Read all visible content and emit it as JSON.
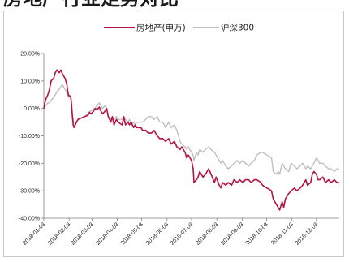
{
  "header": {
    "title": "房地产行业走势对比"
  },
  "chart_data": {
    "type": "line",
    "title": "",
    "xlabel": "",
    "ylabel": "",
    "ylim": [
      -40,
      20
    ],
    "yticks": [
      -40,
      -30,
      -20,
      -10,
      0,
      10,
      20
    ],
    "ytick_labels": [
      "-40.00%",
      "-30.00%",
      "-20.00%",
      "-10.00%",
      "0.00%",
      "10.00%",
      "20.00%"
    ],
    "xlim": [
      "2018-01-03",
      "2018-12-31"
    ],
    "xtick_labels": [
      "2018-01-03",
      "2018-02-03",
      "2018-03-03",
      "2018-04-03",
      "2018-05-03",
      "2018-06-03",
      "2018-07-03",
      "2018-08-03",
      "2018-09-03",
      "2018-10-03",
      "2018-11-03",
      "2018-12-03"
    ],
    "grid": false,
    "legend_position": "top",
    "series": [
      {
        "name": "房地产(申万)",
        "color": "#b5123f",
        "points": [
          [
            "2018-01-03",
            0
          ],
          [
            "2018-01-05",
            3
          ],
          [
            "2018-01-08",
            5
          ],
          [
            "2018-01-10",
            7
          ],
          [
            "2018-01-12",
            10
          ],
          [
            "2018-01-15",
            11
          ],
          [
            "2018-01-17",
            13
          ],
          [
            "2018-01-19",
            14
          ],
          [
            "2018-01-22",
            13
          ],
          [
            "2018-01-24",
            14
          ],
          [
            "2018-01-26",
            12.5
          ],
          [
            "2018-01-29",
            11
          ],
          [
            "2018-01-31",
            9
          ],
          [
            "2018-02-02",
            5
          ],
          [
            "2018-02-05",
            4
          ],
          [
            "2018-02-06",
            1
          ],
          [
            "2018-02-07",
            -3
          ],
          [
            "2018-02-08",
            -6
          ],
          [
            "2018-02-09",
            -7
          ],
          [
            "2018-02-12",
            -5
          ],
          [
            "2018-02-14",
            -4
          ],
          [
            "2018-02-22",
            -3
          ],
          [
            "2018-02-26",
            -2.5
          ],
          [
            "2018-02-28",
            -1.5
          ],
          [
            "2018-03-02",
            -2
          ],
          [
            "2018-03-05",
            -1
          ],
          [
            "2018-03-07",
            0
          ],
          [
            "2018-03-09",
            -0.5
          ],
          [
            "2018-03-12",
            0.5
          ],
          [
            "2018-03-14",
            -1
          ],
          [
            "2018-03-16",
            -2
          ],
          [
            "2018-03-19",
            -1
          ],
          [
            "2018-03-21",
            0
          ],
          [
            "2018-03-23",
            -3
          ],
          [
            "2018-03-26",
            -5
          ],
          [
            "2018-03-28",
            -3
          ],
          [
            "2018-03-30",
            -6
          ],
          [
            "2018-04-02",
            -4
          ],
          [
            "2018-04-04",
            -5
          ],
          [
            "2018-04-09",
            -6
          ],
          [
            "2018-04-11",
            -3
          ],
          [
            "2018-04-13",
            -6
          ],
          [
            "2018-04-16",
            -5
          ],
          [
            "2018-04-18",
            -6
          ],
          [
            "2018-04-20",
            -5
          ],
          [
            "2018-04-23",
            -7
          ],
          [
            "2018-04-25",
            -6
          ],
          [
            "2018-04-27",
            -7
          ],
          [
            "2018-05-02",
            -7
          ],
          [
            "2018-05-04",
            -8
          ],
          [
            "2018-05-08",
            -8
          ],
          [
            "2018-05-11",
            -9
          ],
          [
            "2018-05-15",
            -9
          ],
          [
            "2018-05-18",
            -8
          ],
          [
            "2018-05-22",
            -10
          ],
          [
            "2018-05-25",
            -11
          ],
          [
            "2018-05-29",
            -11
          ],
          [
            "2018-06-01",
            -12
          ],
          [
            "2018-06-05",
            -11
          ],
          [
            "2018-06-08",
            -13
          ],
          [
            "2018-06-12",
            -12
          ],
          [
            "2018-06-15",
            -14
          ],
          [
            "2018-06-19",
            -15
          ],
          [
            "2018-06-21",
            -14
          ],
          [
            "2018-06-25",
            -16
          ],
          [
            "2018-06-27",
            -18
          ],
          [
            "2018-06-29",
            -17
          ],
          [
            "2018-07-03",
            -19
          ],
          [
            "2018-07-05",
            -22
          ],
          [
            "2018-07-06",
            -27
          ],
          [
            "2018-07-09",
            -26
          ],
          [
            "2018-07-11",
            -25
          ],
          [
            "2018-07-13",
            -23
          ],
          [
            "2018-07-17",
            -25
          ],
          [
            "2018-07-20",
            -24
          ],
          [
            "2018-07-24",
            -22
          ],
          [
            "2018-07-27",
            -24
          ],
          [
            "2018-07-31",
            -27
          ],
          [
            "2018-08-02",
            -25
          ],
          [
            "2018-08-06",
            -28
          ],
          [
            "2018-08-08",
            -29
          ],
          [
            "2018-08-10",
            -27
          ],
          [
            "2018-08-14",
            -28
          ],
          [
            "2018-08-17",
            -27
          ],
          [
            "2018-08-21",
            -28
          ],
          [
            "2018-08-24",
            -26
          ],
          [
            "2018-08-28",
            -27
          ],
          [
            "2018-08-31",
            -26
          ],
          [
            "2018-09-04",
            -27
          ],
          [
            "2018-09-07",
            -26
          ],
          [
            "2018-09-11",
            -26
          ],
          [
            "2018-09-14",
            -27
          ],
          [
            "2018-09-18",
            -26
          ],
          [
            "2018-09-21",
            -26
          ],
          [
            "2018-09-26",
            -27
          ],
          [
            "2018-09-28",
            -28
          ],
          [
            "2018-10-09",
            -30
          ],
          [
            "2018-10-11",
            -33
          ],
          [
            "2018-10-15",
            -35
          ],
          [
            "2018-10-17",
            -36
          ],
          [
            "2018-10-19",
            -37
          ],
          [
            "2018-10-22",
            -34
          ],
          [
            "2018-10-24",
            -36
          ],
          [
            "2018-10-26",
            -33
          ],
          [
            "2018-10-30",
            -31
          ],
          [
            "2018-11-02",
            -30
          ],
          [
            "2018-11-06",
            -29
          ],
          [
            "2018-11-09",
            -30
          ],
          [
            "2018-11-13",
            -29
          ],
          [
            "2018-11-16",
            -28
          ],
          [
            "2018-11-20",
            -26
          ],
          [
            "2018-11-22",
            -28
          ],
          [
            "2018-11-26",
            -27
          ],
          [
            "2018-11-28",
            -24
          ],
          [
            "2018-11-30",
            -23
          ],
          [
            "2018-12-03",
            -24
          ],
          [
            "2018-12-05",
            -26
          ],
          [
            "2018-12-07",
            -26
          ],
          [
            "2018-12-11",
            -25
          ],
          [
            "2018-12-14",
            -27
          ],
          [
            "2018-12-18",
            -26
          ],
          [
            "2018-12-21",
            -27
          ],
          [
            "2018-12-25",
            -26
          ],
          [
            "2018-12-28",
            -27
          ],
          [
            "2018-12-31",
            -27
          ]
        ]
      },
      {
        "name": "沪深300",
        "color": "#bfbfbf",
        "points": [
          [
            "2018-01-03",
            0
          ],
          [
            "2018-01-05",
            1
          ],
          [
            "2018-01-08",
            2
          ],
          [
            "2018-01-10",
            2
          ],
          [
            "2018-01-12",
            3
          ],
          [
            "2018-01-15",
            4
          ],
          [
            "2018-01-17",
            5
          ],
          [
            "2018-01-19",
            6
          ],
          [
            "2018-01-22",
            7
          ],
          [
            "2018-01-24",
            8
          ],
          [
            "2018-01-26",
            8.5
          ],
          [
            "2018-01-29",
            7
          ],
          [
            "2018-01-31",
            6
          ],
          [
            "2018-02-02",
            4
          ],
          [
            "2018-02-05",
            5
          ],
          [
            "2018-02-06",
            2
          ],
          [
            "2018-02-07",
            -2
          ],
          [
            "2018-02-08",
            -4
          ],
          [
            "2018-02-09",
            -7
          ],
          [
            "2018-02-12",
            -5
          ],
          [
            "2018-02-14",
            -4
          ],
          [
            "2018-02-22",
            -3
          ],
          [
            "2018-02-26",
            -2
          ],
          [
            "2018-02-28",
            -1
          ],
          [
            "2018-03-02",
            -1
          ],
          [
            "2018-03-05",
            0
          ],
          [
            "2018-03-07",
            0
          ],
          [
            "2018-03-09",
            1
          ],
          [
            "2018-03-12",
            2
          ],
          [
            "2018-03-14",
            1
          ],
          [
            "2018-03-16",
            0
          ],
          [
            "2018-03-19",
            1
          ],
          [
            "2018-03-21",
            0
          ],
          [
            "2018-03-23",
            -3
          ],
          [
            "2018-03-26",
            -4
          ],
          [
            "2018-03-28",
            -3
          ],
          [
            "2018-03-30",
            -4
          ],
          [
            "2018-04-02",
            -3
          ],
          [
            "2018-04-04",
            -4
          ],
          [
            "2018-04-09",
            -4
          ],
          [
            "2018-04-11",
            -3
          ],
          [
            "2018-04-13",
            -4
          ],
          [
            "2018-04-16",
            -5
          ],
          [
            "2018-04-18",
            -4
          ],
          [
            "2018-04-20",
            -6
          ],
          [
            "2018-04-23",
            -5
          ],
          [
            "2018-04-25",
            -6
          ],
          [
            "2018-04-27",
            -5
          ],
          [
            "2018-05-02",
            -5
          ],
          [
            "2018-05-04",
            -5
          ],
          [
            "2018-05-08",
            -4
          ],
          [
            "2018-05-11",
            -3
          ],
          [
            "2018-05-15",
            -3
          ],
          [
            "2018-05-18",
            -4
          ],
          [
            "2018-05-22",
            -3
          ],
          [
            "2018-05-25",
            -5
          ],
          [
            "2018-05-29",
            -5
          ],
          [
            "2018-06-01",
            -7
          ],
          [
            "2018-06-05",
            -5
          ],
          [
            "2018-06-08",
            -7
          ],
          [
            "2018-06-12",
            -6
          ],
          [
            "2018-06-15",
            -8
          ],
          [
            "2018-06-19",
            -12
          ],
          [
            "2018-06-21",
            -13
          ],
          [
            "2018-06-25",
            -14
          ],
          [
            "2018-06-27",
            -15
          ],
          [
            "2018-06-29",
            -14
          ],
          [
            "2018-07-03",
            -16
          ],
          [
            "2018-07-05",
            -17
          ],
          [
            "2018-07-06",
            -19
          ],
          [
            "2018-07-09",
            -16
          ],
          [
            "2018-07-11",
            -17
          ],
          [
            "2018-07-13",
            -15
          ],
          [
            "2018-07-17",
            -16
          ],
          [
            "2018-07-20",
            -15
          ],
          [
            "2018-07-24",
            -14
          ],
          [
            "2018-07-27",
            -15
          ],
          [
            "2018-07-31",
            -16
          ],
          [
            "2018-08-02",
            -17
          ],
          [
            "2018-08-06",
            -19
          ],
          [
            "2018-08-08",
            -20
          ],
          [
            "2018-08-10",
            -19
          ],
          [
            "2018-08-14",
            -21
          ],
          [
            "2018-08-17",
            -22
          ],
          [
            "2018-08-21",
            -21
          ],
          [
            "2018-08-24",
            -20
          ],
          [
            "2018-08-28",
            -19
          ],
          [
            "2018-08-31",
            -20
          ],
          [
            "2018-09-04",
            -19
          ],
          [
            "2018-09-07",
            -20
          ],
          [
            "2018-09-11",
            -21
          ],
          [
            "2018-09-14",
            -20
          ],
          [
            "2018-09-18",
            -19
          ],
          [
            "2018-09-21",
            -17
          ],
          [
            "2018-09-26",
            -16
          ],
          [
            "2018-09-28",
            -16
          ],
          [
            "2018-10-09",
            -18
          ],
          [
            "2018-10-11",
            -23
          ],
          [
            "2018-10-15",
            -24
          ],
          [
            "2018-10-17",
            -23
          ],
          [
            "2018-10-19",
            -24
          ],
          [
            "2018-10-22",
            -20
          ],
          [
            "2018-10-24",
            -21
          ],
          [
            "2018-10-26",
            -22
          ],
          [
            "2018-10-30",
            -23
          ],
          [
            "2018-11-02",
            -20
          ],
          [
            "2018-11-06",
            -21
          ],
          [
            "2018-11-09",
            -22
          ],
          [
            "2018-11-13",
            -21
          ],
          [
            "2018-11-16",
            -20
          ],
          [
            "2018-11-20",
            -22
          ],
          [
            "2018-11-22",
            -21
          ],
          [
            "2018-11-26",
            -22
          ],
          [
            "2018-11-28",
            -21
          ],
          [
            "2018-11-30",
            -20
          ],
          [
            "2018-12-03",
            -18
          ],
          [
            "2018-12-05",
            -19
          ],
          [
            "2018-12-07",
            -20
          ],
          [
            "2018-12-11",
            -20
          ],
          [
            "2018-12-14",
            -21
          ],
          [
            "2018-12-18",
            -22
          ],
          [
            "2018-12-21",
            -22
          ],
          [
            "2018-12-25",
            -23
          ],
          [
            "2018-12-28",
            -22
          ],
          [
            "2018-12-31",
            -22
          ]
        ]
      }
    ]
  }
}
